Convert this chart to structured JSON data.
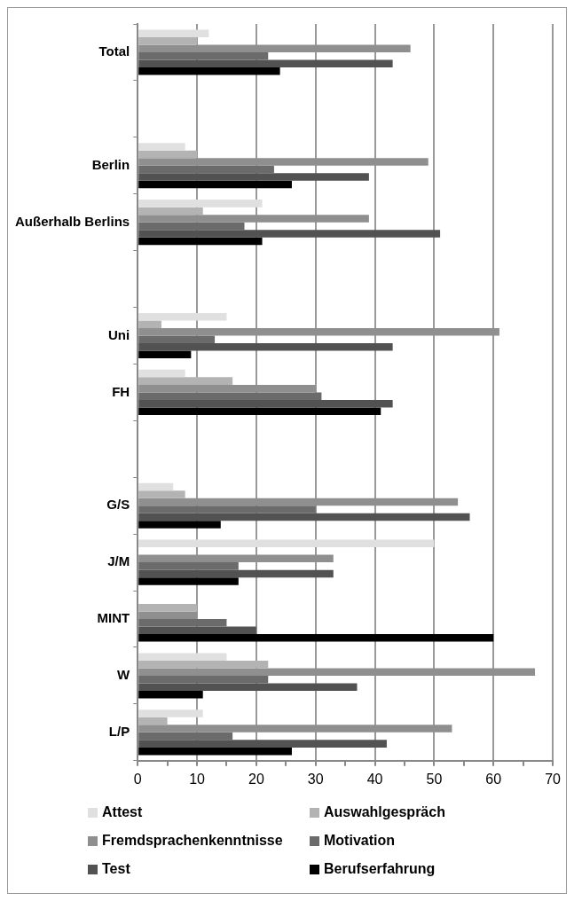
{
  "chart_data": {
    "type": "bar",
    "orientation": "horizontal",
    "categories": [
      "Total",
      null,
      "Berlin",
      "Außerhalb Berlins",
      null,
      "Uni",
      "FH",
      null,
      "G/S",
      "J/M",
      "MINT",
      "W",
      "L/P"
    ],
    "series": [
      {
        "name": "Attest",
        "color": "#e0e0e0",
        "values": [
          12,
          null,
          8,
          21,
          null,
          15,
          8,
          null,
          6,
          50,
          0,
          15,
          11
        ]
      },
      {
        "name": "Auswahlgespräch",
        "color": "#b3b3b3",
        "values": [
          10,
          null,
          10,
          11,
          null,
          4,
          16,
          null,
          8,
          0,
          10,
          22,
          5
        ]
      },
      {
        "name": "Fremdsprachenkenntnisse",
        "color": "#8f8f8f",
        "values": [
          46,
          null,
          49,
          39,
          null,
          61,
          30,
          null,
          54,
          33,
          10,
          67,
          53
        ]
      },
      {
        "name": "Motivation",
        "color": "#6b6b6b",
        "values": [
          22,
          null,
          23,
          18,
          null,
          13,
          31,
          null,
          30,
          17,
          15,
          22,
          16
        ]
      },
      {
        "name": "Test",
        "color": "#525252",
        "values": [
          43,
          null,
          39,
          51,
          null,
          43,
          43,
          null,
          56,
          33,
          20,
          37,
          42
        ]
      },
      {
        "name": "Berufserfahrung",
        "color": "#000000",
        "values": [
          24,
          null,
          26,
          21,
          null,
          9,
          41,
          null,
          14,
          17,
          60,
          11,
          26
        ]
      }
    ],
    "xlim": [
      0,
      70
    ],
    "xticks": [
      0,
      {
        "value": 5,
        "label": null
      },
      10,
      {
        "value": 15,
        "label": null
      },
      20,
      {
        "value": 25,
        "label": null
      },
      30,
      {
        "value": 35,
        "label": null
      },
      40,
      {
        "value": 45,
        "label": null
      },
      50,
      {
        "value": 55,
        "label": null
      },
      60,
      {
        "value": 65,
        "label": null
      },
      70
    ],
    "grid": "x",
    "legend": "bottom"
  }
}
